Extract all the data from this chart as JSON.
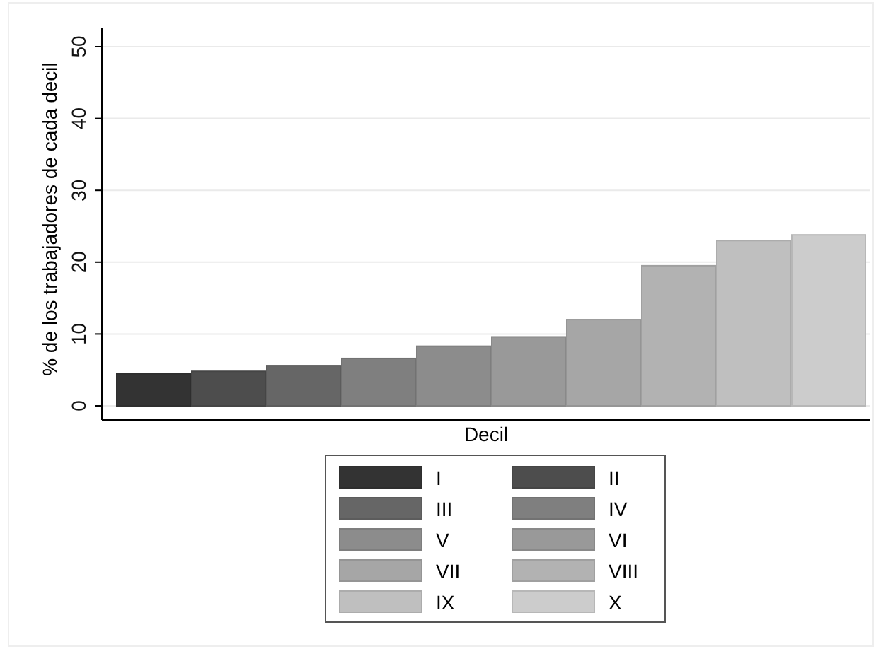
{
  "chart_data": {
    "type": "bar",
    "xlabel": "Decil",
    "ylabel": "% de los trabajadores de cada decil",
    "categories": [
      null
    ],
    "series": [
      {
        "name": "I",
        "color": "#333333",
        "values": [
          4.5
        ]
      },
      {
        "name": "II",
        "color": "#4d4d4d",
        "values": [
          4.8
        ]
      },
      {
        "name": "III",
        "color": "#666666",
        "values": [
          5.6
        ]
      },
      {
        "name": "IV",
        "color": "#7f7f7f",
        "values": [
          6.6
        ]
      },
      {
        "name": "V",
        "color": "#8c8c8c",
        "values": [
          8.3
        ]
      },
      {
        "name": "VI",
        "color": "#999999",
        "values": [
          9.6
        ]
      },
      {
        "name": "VII",
        "color": "#a6a6a6",
        "values": [
          12.0
        ]
      },
      {
        "name": "VIII",
        "color": "#b2b2b2",
        "values": [
          19.5
        ]
      },
      {
        "name": "IX",
        "color": "#bfbfbf",
        "values": [
          23.0
        ]
      },
      {
        "name": "X",
        "color": "#cccccc",
        "values": [
          23.8
        ]
      }
    ],
    "ylim": [
      0,
      50
    ],
    "yticks": [
      0,
      10,
      20,
      30,
      40,
      50
    ],
    "grid": "y",
    "legend": "bottom"
  }
}
